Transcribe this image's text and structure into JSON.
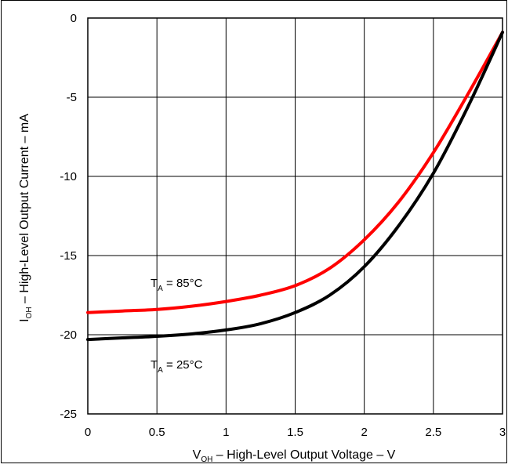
{
  "chart_data": {
    "type": "line",
    "title": "",
    "xlabel": {
      "main": "V",
      "sub": "OH",
      "rest": " – High-Level Output Voltage – V"
    },
    "ylabel": {
      "main": "I",
      "sub": "OH",
      "rest": " – High-Level Output Current – mA"
    },
    "xlim": [
      0,
      3
    ],
    "ylim": [
      -25,
      0
    ],
    "xticks": [
      0,
      0.5,
      1,
      1.5,
      2,
      2.5,
      3
    ],
    "xtick_labels": [
      "0",
      "0.5",
      "1",
      "1.5",
      "2",
      "2.5",
      "3"
    ],
    "yticks": [
      0,
      -5,
      -10,
      -15,
      -20,
      -25
    ],
    "ytick_labels": [
      "0",
      "-5",
      "-10",
      "-15",
      "-20",
      "-25"
    ],
    "grid": true,
    "series": [
      {
        "color": "#ff0000",
        "annotation": {
          "main": "T",
          "sub": "A",
          "rest": " = 85°C"
        },
        "x": [
          0,
          0.25,
          0.5,
          0.75,
          1.0,
          1.25,
          1.5,
          1.75,
          2.0,
          2.25,
          2.5,
          2.75,
          3.0
        ],
        "y": [
          -18.6,
          -18.5,
          -18.4,
          -18.2,
          -17.9,
          -17.5,
          -16.9,
          -15.8,
          -14.0,
          -11.6,
          -8.5,
          -4.8,
          -0.9
        ]
      },
      {
        "color": "#000000",
        "annotation": {
          "main": "T",
          "sub": "A",
          "rest": " = 25°C"
        },
        "x": [
          0,
          0.25,
          0.5,
          0.75,
          1.0,
          1.25,
          1.5,
          1.75,
          2.0,
          2.25,
          2.5,
          2.75,
          3.0
        ],
        "y": [
          -20.3,
          -20.2,
          -20.1,
          -19.95,
          -19.7,
          -19.3,
          -18.6,
          -17.5,
          -15.7,
          -13.1,
          -9.8,
          -5.6,
          -0.9
        ]
      }
    ]
  }
}
